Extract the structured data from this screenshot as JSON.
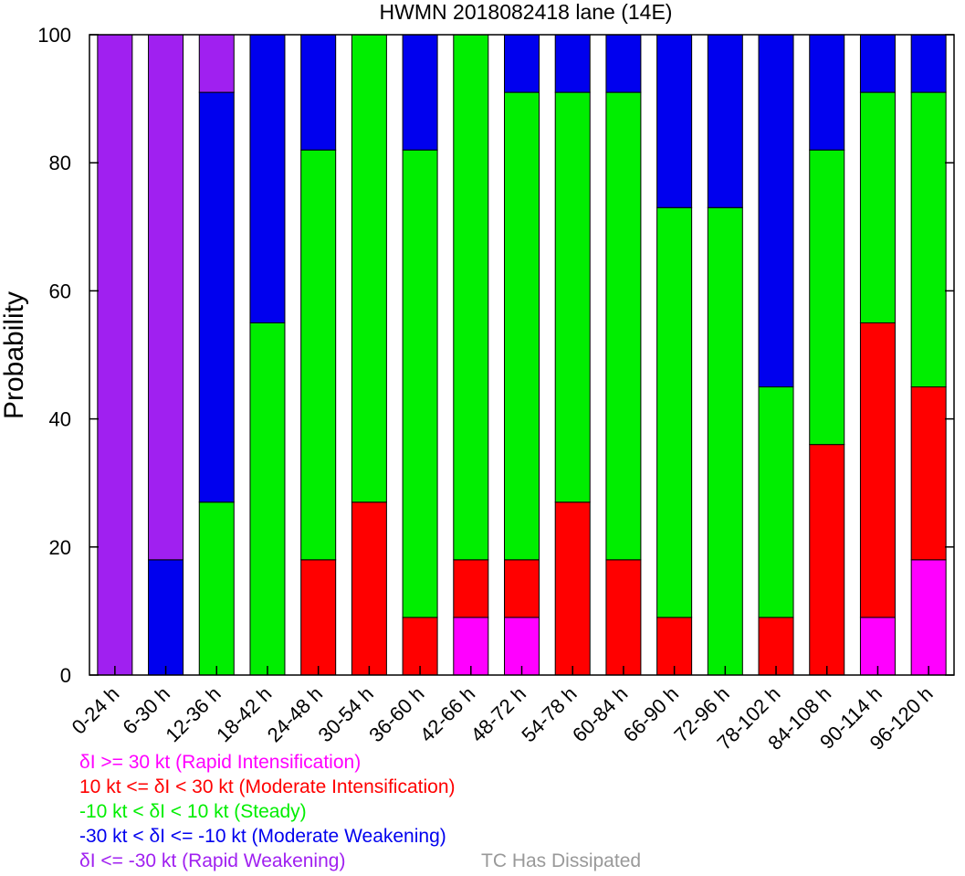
{
  "chart_data": {
    "type": "bar",
    "stacked": true,
    "title": "HWMN 2018082418 lane (14E)",
    "xlabel": "",
    "ylabel": "Probability",
    "ylim": [
      0,
      100
    ],
    "yticks": [
      0,
      20,
      40,
      60,
      80,
      100
    ],
    "grid": false,
    "categories": [
      "0-24 h",
      "6-30 h",
      "12-36 h",
      "18-42 h",
      "24-48 h",
      "30-54 h",
      "36-60 h",
      "42-66 h",
      "48-72 h",
      "54-78 h",
      "60-84 h",
      "66-90 h",
      "72-96 h",
      "78-102 h",
      "84-108 h",
      "90-114 h",
      "96-120 h"
    ],
    "series": [
      {
        "key": "ri",
        "color": "#ff00ff",
        "values": [
          0,
          0,
          0,
          0,
          0,
          0,
          0,
          9,
          9,
          0,
          0,
          0,
          0,
          0,
          0,
          9,
          18
        ]
      },
      {
        "key": "mi",
        "color": "#ff0000",
        "values": [
          0,
          0,
          0,
          0,
          18,
          27,
          9,
          9,
          9,
          27,
          18,
          9,
          0,
          9,
          36,
          46,
          27
        ]
      },
      {
        "key": "steady",
        "color": "#00ee00",
        "values": [
          0,
          0,
          27,
          55,
          64,
          73,
          73,
          82,
          73,
          64,
          73,
          64,
          73,
          36,
          46,
          36,
          46
        ]
      },
      {
        "key": "mw",
        "color": "#0000ee",
        "values": [
          0,
          18,
          64,
          45,
          18,
          0,
          18,
          0,
          9,
          9,
          9,
          27,
          27,
          55,
          18,
          9,
          9
        ]
      },
      {
        "key": "rw",
        "color": "#a020f0",
        "values": [
          100,
          82,
          9,
          0,
          0,
          0,
          0,
          0,
          0,
          0,
          0,
          0,
          0,
          0,
          0,
          0,
          0
        ]
      }
    ]
  },
  "legend": {
    "ri": {
      "text": "δI >= 30 kt (Rapid Intensification)",
      "color": "#ff00ff"
    },
    "mi": {
      "text": "10 kt <= δI < 30 kt (Moderate Intensification)",
      "color": "#ff0000"
    },
    "steady": {
      "text": "-10 kt < δI < 10 kt (Steady)",
      "color": "#00ee00"
    },
    "mw": {
      "text": "-30 kt < δI <= -10 kt (Moderate Weakening)",
      "color": "#0000ee"
    },
    "rw": {
      "text": "δI <= -30 kt (Rapid Weakening)",
      "color": "#a020f0"
    },
    "dissipated": {
      "text": "TC Has Dissipated",
      "color": "#999999"
    }
  }
}
